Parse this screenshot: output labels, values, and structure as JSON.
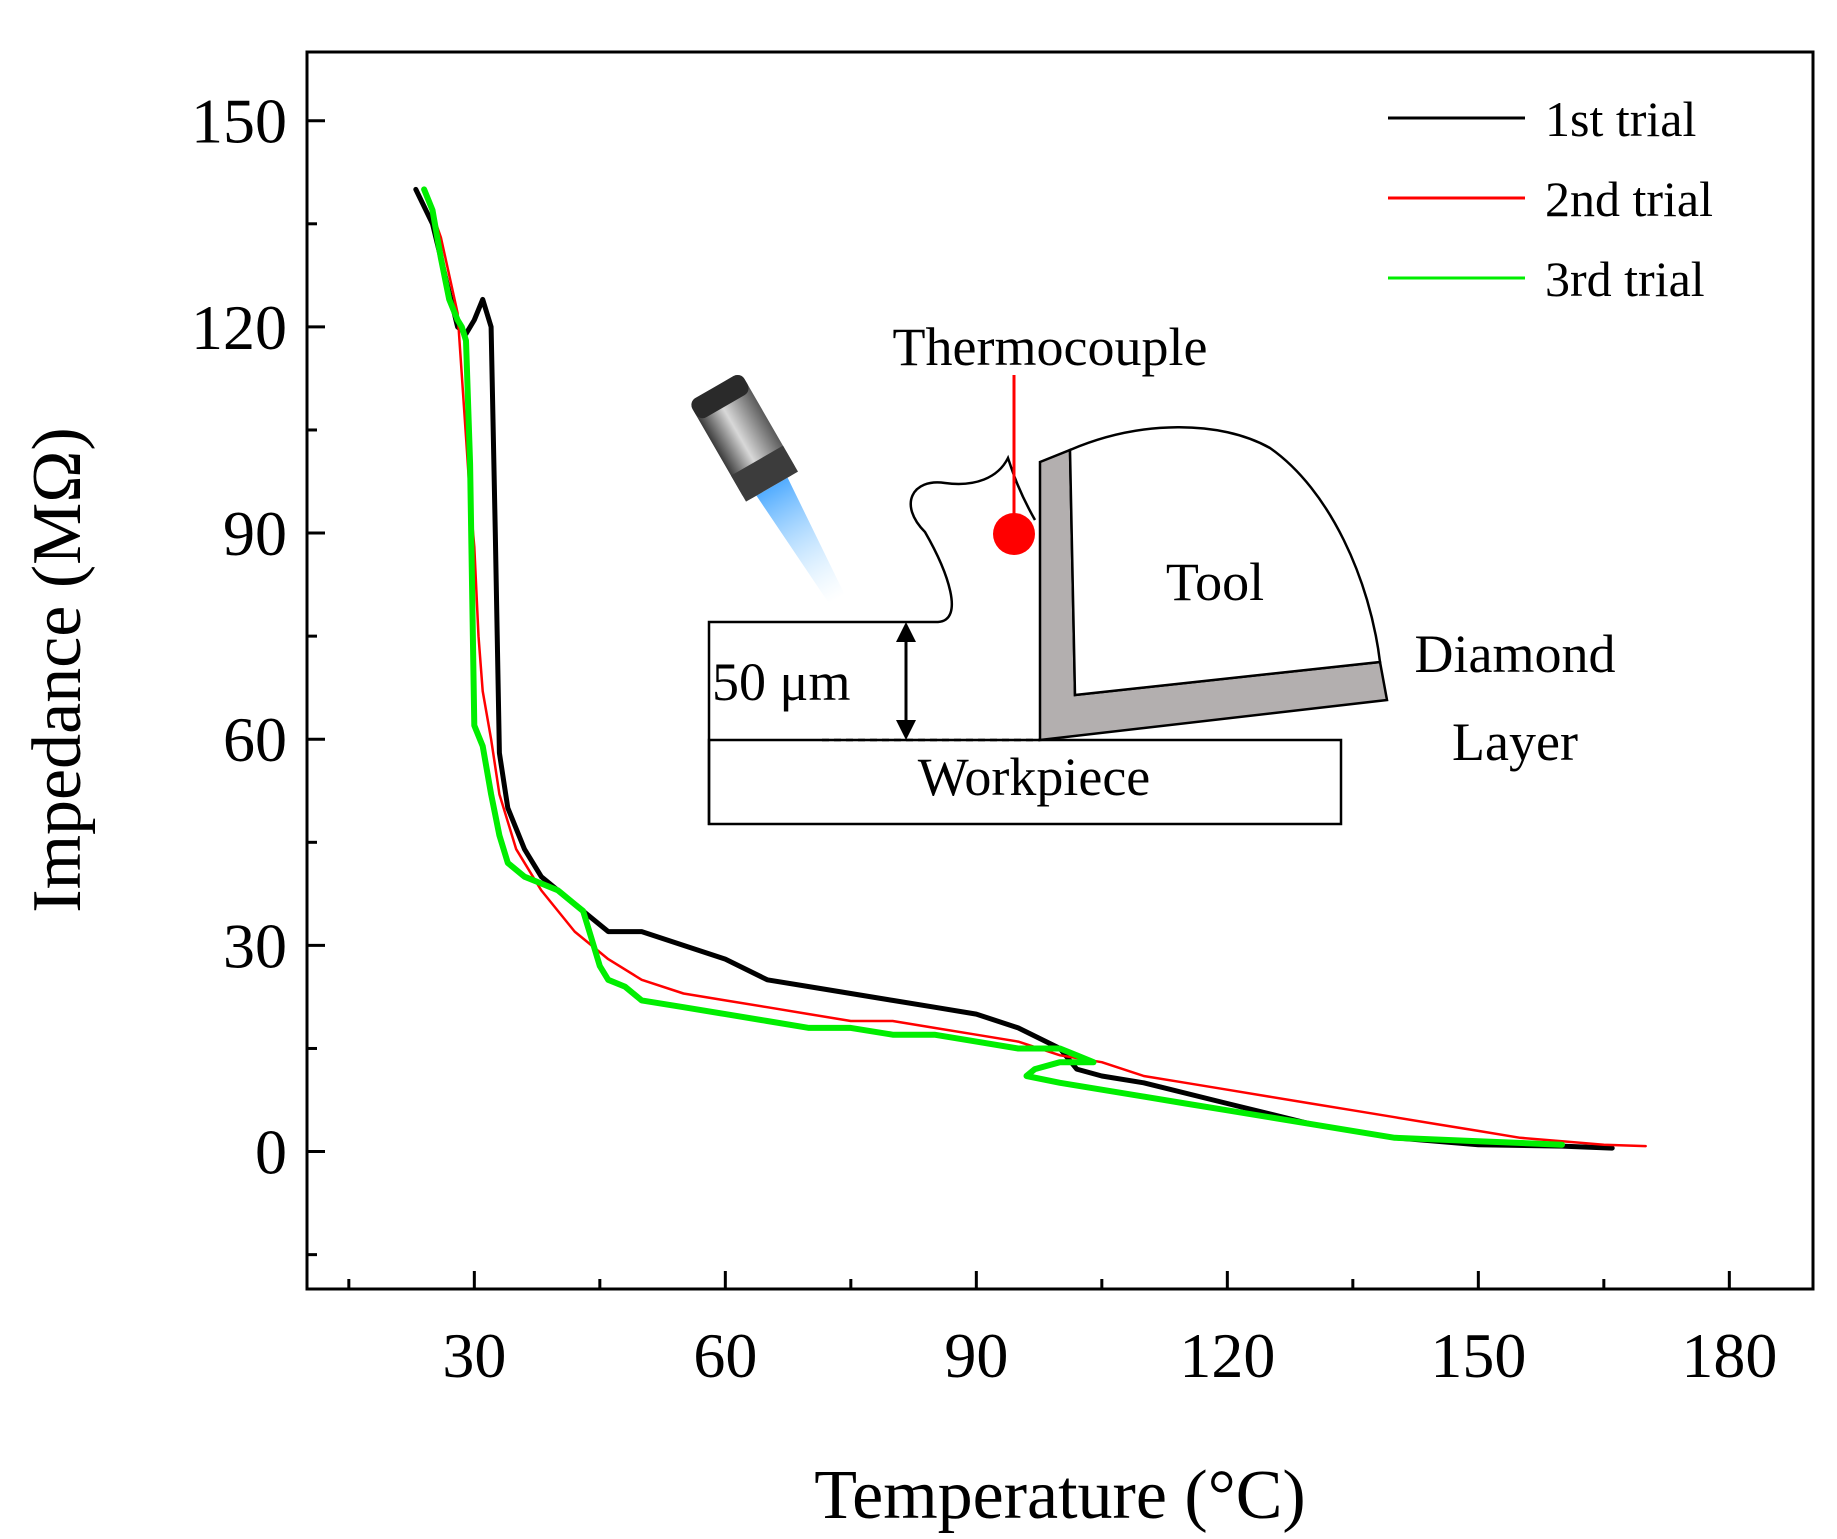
{
  "chart_data": {
    "type": "line",
    "title": "",
    "xlabel": "Temperature (°C)",
    "ylabel": "Impedance (MΩ)",
    "xlim": [
      10,
      190
    ],
    "ylim": [
      -20,
      160
    ],
    "xticks": [
      30,
      60,
      90,
      120,
      150,
      180
    ],
    "yticks": [
      0,
      30,
      60,
      90,
      120,
      150
    ],
    "grid": false,
    "legend_position": "top-right",
    "series": [
      {
        "name": "1st trial",
        "color": "#000000",
        "x": [
          23,
          25,
          27,
          28,
          29,
          30,
          31,
          32,
          32.5,
          33,
          34,
          36,
          38,
          40,
          42,
          44,
          46,
          50,
          55,
          60,
          65,
          70,
          75,
          80,
          85,
          90,
          95,
          100,
          102,
          105,
          110,
          120,
          130,
          140,
          150,
          160,
          166
        ],
        "y": [
          140,
          135,
          125,
          120,
          119,
          121,
          124,
          120,
          90,
          58,
          50,
          44,
          40,
          38,
          36,
          34,
          32,
          32,
          30,
          28,
          25,
          24,
          23,
          22,
          21,
          20,
          18,
          15,
          12,
          11,
          10,
          7,
          4,
          2,
          1,
          0.8,
          0.5
        ]
      },
      {
        "name": "2nd trial",
        "color": "#ff0000",
        "x": [
          24,
          26,
          28,
          29,
          29.5,
          30,
          30.5,
          31,
          32,
          33,
          35,
          38,
          40,
          42,
          44,
          46,
          50,
          55,
          60,
          65,
          70,
          75,
          80,
          85,
          90,
          95,
          100,
          105,
          110,
          115,
          120,
          125,
          130,
          135,
          140,
          145,
          150,
          155,
          160,
          165,
          170
        ],
        "y": [
          140,
          133,
          122,
          104,
          95,
          88,
          75,
          67,
          60,
          52,
          44,
          38,
          35,
          32,
          30,
          28,
          25,
          23,
          22,
          21,
          20,
          19,
          19,
          18,
          17,
          16,
          14,
          13,
          11,
          10,
          9,
          8,
          7,
          6,
          5,
          4,
          3,
          2,
          1.5,
          1,
          0.8
        ]
      },
      {
        "name": "3rd trial",
        "color": "#00ee00",
        "x": [
          24,
          25,
          26,
          27,
          28,
          28.5,
          29,
          29.5,
          30,
          31,
          32,
          33,
          34,
          36,
          38,
          40,
          42,
          43,
          44,
          45,
          46,
          48,
          50,
          55,
          60,
          65,
          70,
          75,
          80,
          85,
          90,
          95,
          97,
          100,
          102,
          104,
          100,
          97,
          96,
          100,
          105,
          110,
          115,
          120,
          125,
          130,
          135,
          140,
          150,
          160
        ],
        "y": [
          140,
          137,
          130,
          124,
          121,
          120,
          118,
          100,
          62,
          59,
          52,
          46,
          42,
          40,
          39,
          38,
          36,
          35,
          31,
          27,
          25,
          24,
          22,
          21,
          20,
          19,
          18,
          18,
          17,
          17,
          16,
          15,
          15,
          15,
          14,
          13,
          13,
          12,
          11,
          10,
          9,
          8,
          7,
          6,
          5,
          4,
          3,
          2,
          1.5,
          1
        ]
      }
    ],
    "inset": {
      "thermocouple_label": "Thermocouple",
      "tool_label": "Tool",
      "diamond_label_line1": "Diamond",
      "diamond_label_line2": "Layer",
      "depth_label": "50 μm",
      "workpiece_label": "Workpiece",
      "thermocouple_color": "#ff0000",
      "diamond_layer_color": "#b3afaf"
    }
  }
}
